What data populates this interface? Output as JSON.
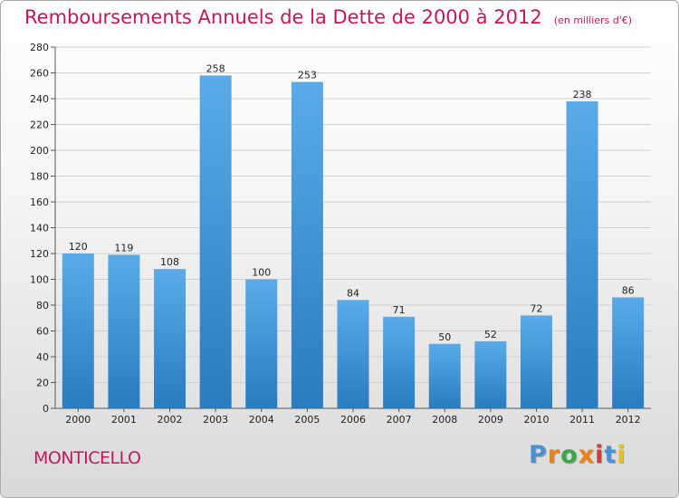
{
  "header": {
    "title": "Remboursements Annuels de la Dette de 2000 à 2012",
    "unit": "(en milliers d'€)"
  },
  "footer": {
    "commune": "MONTICELLO",
    "logo_text": "Proxiti"
  },
  "colors": {
    "accent": "#c2185b",
    "bar_top": "#5aabe8",
    "bar_bottom": "#2a7bbf",
    "grid": "#d0d0d0",
    "logo_letters": [
      "#4a90d9",
      "#e8821a",
      "#3aa84a",
      "#e8821a",
      "#d93b3b",
      "#4a90d9",
      "#e8c21a"
    ]
  },
  "chart_data": {
    "type": "bar",
    "title": "Remboursements Annuels de la Dette de 2000 à 2012",
    "subtitle": "(en milliers d'€)",
    "xlabel": "",
    "ylabel": "",
    "categories": [
      "2000",
      "2001",
      "2002",
      "2003",
      "2004",
      "2005",
      "2006",
      "2007",
      "2008",
      "2009",
      "2010",
      "2011",
      "2012"
    ],
    "values": [
      120,
      119,
      108,
      258,
      100,
      253,
      84,
      71,
      50,
      52,
      72,
      238,
      86
    ],
    "ylim": [
      0,
      280
    ],
    "yticks": [
      0,
      20,
      40,
      60,
      80,
      100,
      120,
      140,
      160,
      180,
      200,
      220,
      240,
      260,
      280
    ],
    "grid": true,
    "data_labels": true,
    "legend": "none"
  }
}
